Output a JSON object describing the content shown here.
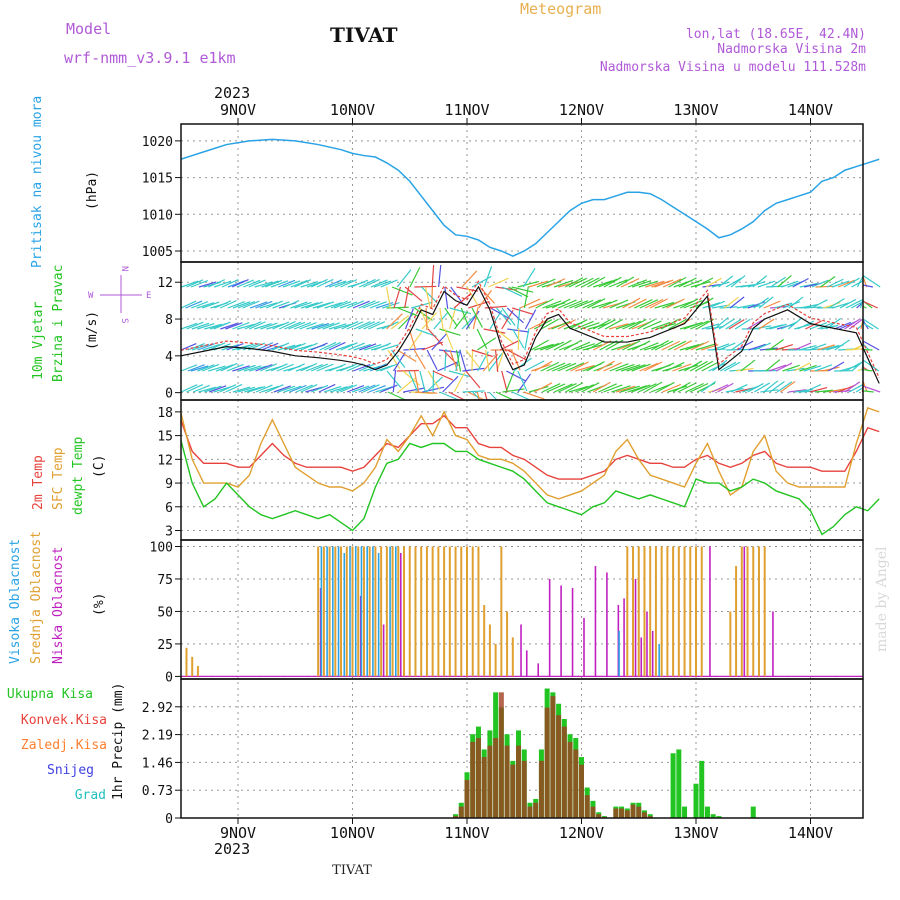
{
  "header": {
    "model_label": "Model",
    "model_name": "wrf-nmm_v3.9.1  e1km",
    "station": "TIVAT",
    "meteogram": "Meteogram",
    "location_line": "lon,lat (18.65E, 42.4N)",
    "elevation_line": "Nadmorska Visina 2m",
    "model_elevation_line": "Nadmorska Visina u modelu 111.528m",
    "year": "2023",
    "footer_station": "TIVAT",
    "watermark": "made by Angel"
  },
  "colors": {
    "pressure": "#29a3e6",
    "wind_green": "#22c422",
    "wind_cyan": "#22c4c4",
    "temp2m": "#e8423c",
    "sfc_temp": "#e0a030",
    "dewpt": "#22c422",
    "high_cloud": "#29a3e6",
    "mid_cloud": "#e0a030",
    "low_cloud": "#c020c0",
    "precip_total": "#22c422",
    "precip_conv": "#e8423c",
    "freezing": "#ff8030",
    "snow": "#4040e0",
    "hail": "#20c0c0",
    "label_purple": "#b05ad8",
    "meteogram_orange": "#e8b050"
  },
  "chart_data": [
    {
      "type": "line",
      "panel": "pressure",
      "ylabel_left": "Pritisak na nivou mora",
      "ylabel_unit": "(hPa)",
      "x_ticks": [
        "9NOV",
        "10NOV",
        "11NOV",
        "12NOV",
        "13NOV",
        "14NOV"
      ],
      "yticks": [
        1005,
        1010,
        1015,
        1020
      ],
      "ylim": [
        1003.5,
        1022.3
      ],
      "x_days": [
        -0.5,
        -0.4,
        -0.3,
        -0.1,
        0.1,
        0.3,
        0.5,
        0.7,
        0.9,
        1.0,
        1.1,
        1.2,
        1.3,
        1.4,
        1.5,
        1.6,
        1.7,
        1.8,
        1.9,
        2.0,
        2.1,
        2.2,
        2.3,
        2.4,
        2.5,
        2.6,
        2.7,
        2.8,
        2.9,
        3.0,
        3.1,
        3.2,
        3.3,
        3.4,
        3.5,
        3.6,
        3.7,
        3.8,
        3.9,
        4.0,
        4.1,
        4.2,
        4.3,
        4.4,
        4.5,
        4.6,
        4.7,
        4.8,
        4.9,
        5.0,
        5.1,
        5.2,
        5.3,
        5.4,
        5.5,
        5.6
      ],
      "values": [
        1017.5,
        1018.0,
        1018.5,
        1019.5,
        1020.0,
        1020.2,
        1020.0,
        1019.5,
        1018.8,
        1018.3,
        1018.0,
        1017.8,
        1017.0,
        1016.0,
        1014.5,
        1012.5,
        1010.5,
        1008.5,
        1007.2,
        1007.0,
        1006.5,
        1005.5,
        1005.0,
        1004.3,
        1005.0,
        1006.0,
        1007.5,
        1009.0,
        1010.5,
        1011.5,
        1012.0,
        1012.0,
        1012.5,
        1013.0,
        1013.0,
        1012.8,
        1012.0,
        1011.0,
        1010.0,
        1009.0,
        1008.0,
        1006.8,
        1007.2,
        1008.0,
        1009.0,
        1010.5,
        1011.5,
        1012.0,
        1012.5,
        1013.0,
        1014.5,
        1015.0,
        1016.0,
        1016.5,
        1017.0,
        1017.5
      ]
    },
    {
      "type": "line",
      "panel": "wind",
      "ylabel_left_1": "10m Vjetar",
      "ylabel_left_2": "Brzina i Pravac",
      "ylabel_unit": "(m/s)",
      "compass": [
        "N",
        "S",
        "W",
        "E"
      ],
      "yticks": [
        0,
        4,
        8,
        12
      ],
      "ylim": [
        -0.8,
        14.2
      ],
      "x_days": [
        -0.5,
        -0.3,
        -0.1,
        0.1,
        0.3,
        0.5,
        0.7,
        0.9,
        1.0,
        1.1,
        1.2,
        1.3,
        1.4,
        1.5,
        1.6,
        1.7,
        1.8,
        1.9,
        2.0,
        2.1,
        2.2,
        2.3,
        2.4,
        2.5,
        2.6,
        2.7,
        2.8,
        2.9,
        3.0,
        3.2,
        3.4,
        3.6,
        3.8,
        3.9,
        4.0,
        4.1,
        4.2,
        4.3,
        4.4,
        4.5,
        4.6,
        4.8,
        5.0,
        5.2,
        5.4,
        5.6
      ],
      "values": [
        4.0,
        4.5,
        5.0,
        4.8,
        4.5,
        4.0,
        3.8,
        3.5,
        3.3,
        3.0,
        2.5,
        3.0,
        4.5,
        6.5,
        9.0,
        8.5,
        11.0,
        10.0,
        9.5,
        11.5,
        9.0,
        5.0,
        2.5,
        3.0,
        6.0,
        8.0,
        8.5,
        7.0,
        6.5,
        5.5,
        5.5,
        6.0,
        7.0,
        7.5,
        9.0,
        10.5,
        2.5,
        3.5,
        4.5,
        7.0,
        8.0,
        9.0,
        7.5,
        7.0,
        6.5,
        1.0
      ]
    },
    {
      "type": "line",
      "panel": "temperature",
      "ylabel_left_1": "2m Temp",
      "ylabel_left_2": "SFC Temp",
      "ylabel_left_3": "dewpt Temp",
      "ylabel_unit": "(C)",
      "yticks": [
        3,
        6,
        9,
        12,
        15,
        18
      ],
      "ylim": [
        1.8,
        19.5
      ],
      "x_days": [
        -0.5,
        -0.4,
        -0.3,
        -0.2,
        -0.1,
        0.0,
        0.1,
        0.2,
        0.3,
        0.4,
        0.5,
        0.6,
        0.7,
        0.8,
        0.9,
        1.0,
        1.1,
        1.2,
        1.3,
        1.4,
        1.5,
        1.6,
        1.7,
        1.8,
        1.9,
        2.0,
        2.1,
        2.2,
        2.3,
        2.4,
        2.5,
        2.6,
        2.7,
        2.8,
        2.9,
        3.0,
        3.1,
        3.2,
        3.3,
        3.4,
        3.5,
        3.6,
        3.7,
        3.8,
        3.9,
        4.0,
        4.1,
        4.2,
        4.3,
        4.4,
        4.5,
        4.6,
        4.7,
        4.8,
        4.9,
        5.0,
        5.1,
        5.2,
        5.3,
        5.4,
        5.5,
        5.6
      ],
      "series": [
        {
          "name": "2m Temp",
          "values": [
            17.0,
            13.0,
            11.5,
            11.5,
            11.5,
            11.0,
            11.0,
            12.5,
            14.0,
            12.5,
            11.5,
            11.0,
            11.0,
            11.0,
            11.0,
            10.5,
            11.0,
            12.5,
            14.0,
            13.5,
            15.0,
            16.5,
            16.5,
            17.5,
            16.0,
            16.0,
            14.0,
            13.5,
            13.5,
            12.5,
            12.0,
            11.0,
            10.0,
            9.5,
            9.5,
            9.5,
            10.0,
            10.5,
            12.0,
            12.5,
            12.0,
            11.5,
            11.5,
            11.0,
            11.0,
            12.0,
            12.5,
            11.5,
            11.0,
            11.5,
            12.5,
            13.0,
            11.5,
            11.0,
            11.0,
            11.0,
            10.5,
            10.5,
            10.5,
            13.0,
            16.0,
            15.5
          ]
        },
        {
          "name": "SFC Temp",
          "values": [
            18.0,
            12.0,
            9.0,
            9.0,
            9.0,
            8.5,
            10.0,
            14.0,
            17.0,
            14.0,
            11.0,
            10.0,
            9.0,
            8.5,
            8.5,
            8.0,
            9.0,
            11.0,
            14.5,
            13.0,
            15.0,
            17.5,
            15.0,
            18.0,
            15.0,
            14.5,
            12.5,
            12.0,
            12.0,
            11.5,
            10.5,
            9.0,
            7.5,
            7.0,
            7.5,
            8.0,
            9.0,
            10.0,
            13.0,
            14.5,
            12.0,
            10.0,
            9.5,
            9.0,
            8.5,
            11.5,
            14.0,
            10.5,
            7.5,
            8.5,
            13.0,
            15.0,
            10.5,
            9.0,
            8.5,
            8.5,
            8.5,
            8.5,
            8.5,
            14.0,
            18.5,
            18.0
          ]
        },
        {
          "name": "dewpt Temp",
          "values": [
            14.5,
            9.0,
            6.0,
            7.0,
            9.0,
            7.5,
            6.0,
            5.0,
            4.5,
            5.0,
            5.5,
            5.0,
            4.5,
            5.0,
            4.0,
            3.0,
            4.5,
            8.5,
            11.5,
            12.0,
            14.0,
            13.5,
            14.0,
            14.0,
            13.0,
            13.0,
            12.0,
            11.5,
            11.0,
            10.5,
            9.5,
            8.0,
            6.5,
            6.0,
            5.5,
            5.0,
            6.0,
            6.5,
            8.0,
            7.5,
            7.0,
            7.5,
            7.0,
            6.5,
            6.0,
            9.5,
            9.0,
            9.0,
            8.0,
            8.5,
            9.5,
            9.0,
            8.0,
            7.5,
            7.0,
            5.5,
            2.5,
            3.5,
            5.0,
            6.0,
            5.5,
            7.0
          ]
        }
      ]
    },
    {
      "type": "bar",
      "panel": "clouds",
      "ylabel_left_1": "Visoka Oblacnost",
      "ylabel_left_2": "Srednja Oblacnost",
      "ylabel_left_3": "Niska Oblacnost",
      "ylabel_unit": "(%)",
      "yticks": [
        0,
        25,
        50,
        75,
        100
      ],
      "ylim": [
        -2,
        105
      ],
      "x_days": [
        -0.45,
        -0.4,
        -0.35,
        0.7,
        0.75,
        0.8,
        0.85,
        0.9,
        0.95,
        1.0,
        1.05,
        1.1,
        1.15,
        1.2,
        1.25,
        1.3,
        1.35,
        1.4,
        1.45,
        1.5,
        1.55,
        1.6,
        1.65,
        1.7,
        1.75,
        1.8,
        1.85,
        1.9,
        1.95,
        2.0,
        2.05,
        2.1,
        2.15,
        2.2,
        2.25,
        2.3,
        2.35,
        2.4,
        2.45,
        2.5,
        2.55,
        2.6,
        2.7,
        2.8,
        2.9,
        3.0,
        3.1,
        3.2,
        3.3,
        3.35,
        3.4,
        3.45,
        3.5,
        3.55,
        3.6,
        3.65,
        3.7,
        3.75,
        3.8,
        3.85,
        3.9,
        3.95,
        4.0,
        4.05,
        4.1,
        4.3,
        4.35,
        4.4,
        4.45,
        4.5,
        4.55,
        4.6,
        4.65
      ],
      "series": [
        {
          "name": "Visoka Oblacnost",
          "values": [
            0,
            0,
            0,
            0,
            100,
            100,
            100,
            100,
            95,
            100,
            100,
            100,
            100,
            100,
            95,
            0,
            100,
            100,
            0,
            0,
            0,
            0,
            0,
            0,
            0,
            0,
            0,
            0,
            0,
            0,
            0,
            0,
            0,
            0,
            0,
            0,
            0,
            0,
            0,
            0,
            0,
            0,
            0,
            0,
            0,
            0,
            0,
            0,
            0,
            35,
            0,
            0,
            0,
            0,
            0,
            0,
            25,
            0,
            0,
            0,
            0,
            0,
            0,
            0,
            0,
            0,
            0,
            0,
            0,
            0,
            0,
            0,
            0
          ]
        },
        {
          "name": "Srednja Oblacnost",
          "values": [
            22,
            15,
            8,
            100,
            100,
            100,
            100,
            100,
            100,
            100,
            100,
            100,
            100,
            100,
            100,
            100,
            100,
            100,
            100,
            100,
            100,
            100,
            100,
            100,
            100,
            100,
            100,
            100,
            100,
            100,
            100,
            100,
            55,
            40,
            25,
            100,
            50,
            30,
            0,
            0,
            0,
            0,
            0,
            0,
            0,
            0,
            0,
            0,
            0,
            0,
            100,
            100,
            100,
            100,
            100,
            100,
            100,
            100,
            100,
            100,
            100,
            100,
            100,
            100,
            0,
            50,
            85,
            100,
            100,
            100,
            100,
            100,
            0
          ]
        },
        {
          "name": "Niska Oblacnost",
          "values": [
            0,
            0,
            0,
            68,
            0,
            0,
            0,
            0,
            0,
            0,
            62,
            0,
            0,
            0,
            40,
            0,
            0,
            95,
            0,
            0,
            0,
            0,
            0,
            0,
            0,
            0,
            0,
            0,
            0,
            0,
            0,
            0,
            0,
            0,
            0,
            0,
            0,
            0,
            40,
            20,
            0,
            10,
            75,
            70,
            68,
            45,
            85,
            80,
            55,
            60,
            0,
            75,
            30,
            50,
            35,
            0,
            0,
            0,
            0,
            0,
            0,
            0,
            0,
            0,
            100,
            0,
            0,
            100,
            0,
            0,
            0,
            0,
            50
          ]
        }
      ]
    },
    {
      "type": "bar",
      "panel": "precip",
      "legend": [
        "Ukupna Kisa",
        "Konvek.Kisa",
        "Zaledj.Kisa",
        "Snijeg",
        "Grad"
      ],
      "ylabel_unit": "1hr Precip (mm)",
      "yticks": [
        0,
        0.73,
        1.46,
        2.19,
        2.92
      ],
      "ylim": [
        0,
        3.65
      ],
      "x_ticks": [
        "9NOV",
        "10NOV",
        "11NOV",
        "12NOV",
        "13NOV",
        "14NOV"
      ],
      "x_days": [
        1.9,
        1.95,
        2.0,
        2.05,
        2.1,
        2.15,
        2.2,
        2.25,
        2.3,
        2.35,
        2.4,
        2.45,
        2.5,
        2.55,
        2.6,
        2.65,
        2.7,
        2.75,
        2.8,
        2.85,
        2.9,
        2.95,
        3.0,
        3.05,
        3.1,
        3.15,
        3.2,
        3.3,
        3.35,
        3.4,
        3.45,
        3.5,
        3.55,
        3.6,
        3.8,
        3.85,
        3.9,
        4.0,
        4.05,
        4.1,
        4.15,
        4.2,
        4.5
      ],
      "series": [
        {
          "name": "Ukupna Kisa",
          "values": [
            0.1,
            0.4,
            1.2,
            2.2,
            2.4,
            1.8,
            2.3,
            3.3,
            2.9,
            2.2,
            1.5,
            2.3,
            1.8,
            0.4,
            0.5,
            1.8,
            3.4,
            3.3,
            3.0,
            2.6,
            2.2,
            2.1,
            1.6,
            0.8,
            0.45,
            0.15,
            0.05,
            0.3,
            0.3,
            0.25,
            0.4,
            0.4,
            0.2,
            0.1,
            1.7,
            1.8,
            0.3,
            0.9,
            1.5,
            0.3,
            0.1,
            0.05,
            0.3
          ]
        },
        {
          "name": "Konvek.Kisa",
          "values": [
            0.05,
            0.3,
            1.0,
            2.0,
            2.1,
            1.6,
            1.9,
            2.1,
            3.3,
            1.9,
            1.4,
            1.9,
            1.5,
            0.3,
            0.4,
            1.5,
            2.9,
            3.2,
            2.7,
            2.4,
            2.0,
            1.8,
            1.4,
            0.6,
            0.3,
            0.1,
            0.03,
            0.25,
            0.25,
            0.2,
            0.35,
            0.3,
            0.15,
            0.05,
            0,
            0,
            0,
            0,
            0,
            0,
            0,
            0,
            0
          ]
        }
      ]
    }
  ]
}
